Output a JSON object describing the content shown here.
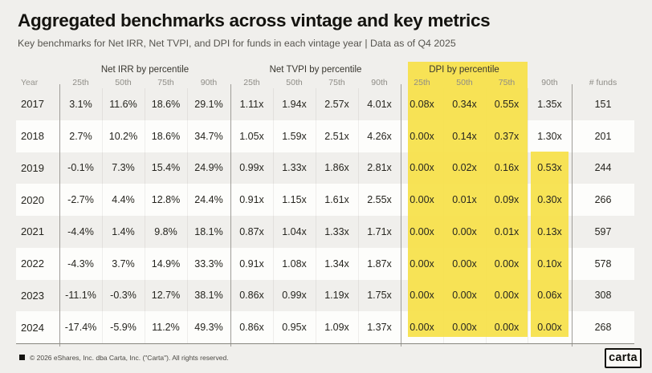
{
  "page": {
    "title": "Aggregated benchmarks across vintage and key metrics",
    "subtitle": "Key benchmarks for Net IRR, Net TVPI, and DPI for funds in each vintage year | Data as of Q4 2025"
  },
  "chart_data": {
    "type": "table",
    "title": "Aggregated benchmarks across vintage and key metrics",
    "subtitle": "Key benchmarks for Net IRR, Net TVPI, and DPI for funds in each vintage year | Data as of Q4 2025",
    "column_groups": [
      "Net IRR by percentile",
      "Net TVPI by percentile",
      "DPI by percentile"
    ],
    "columns": [
      "Year",
      "25th",
      "50th",
      "75th",
      "90th",
      "25th",
      "50th",
      "75th",
      "90th",
      "25th",
      "50th",
      "75th",
      "90th",
      "# funds"
    ],
    "rows": [
      {
        "year": "2017",
        "values": [
          "3.1%",
          "11.6%",
          "18.6%",
          "29.1%",
          "1.11x",
          "1.94x",
          "2.57x",
          "4.01x",
          "0.08x",
          "0.34x",
          "0.55x",
          "1.35x"
        ],
        "funds": "151"
      },
      {
        "year": "2018",
        "values": [
          "2.7%",
          "10.2%",
          "18.6%",
          "34.7%",
          "1.05x",
          "1.59x",
          "2.51x",
          "4.26x",
          "0.00x",
          "0.14x",
          "0.37x",
          "1.30x"
        ],
        "funds": "201"
      },
      {
        "year": "2019",
        "values": [
          "-0.1%",
          "7.3%",
          "15.4%",
          "24.9%",
          "0.99x",
          "1.33x",
          "1.86x",
          "2.81x",
          "0.00x",
          "0.02x",
          "0.16x",
          "0.53x"
        ],
        "funds": "244"
      },
      {
        "year": "2020",
        "values": [
          "-2.7%",
          "4.4%",
          "12.8%",
          "24.4%",
          "0.91x",
          "1.15x",
          "1.61x",
          "2.55x",
          "0.00x",
          "0.01x",
          "0.09x",
          "0.30x"
        ],
        "funds": "266"
      },
      {
        "year": "2021",
        "values": [
          "-4.4%",
          "1.4%",
          "9.8%",
          "18.1%",
          "0.87x",
          "1.04x",
          "1.33x",
          "1.71x",
          "0.00x",
          "0.00x",
          "0.01x",
          "0.13x"
        ],
        "funds": "597"
      },
      {
        "year": "2022",
        "values": [
          "-4.3%",
          "3.7%",
          "14.9%",
          "33.3%",
          "0.91x",
          "1.08x",
          "1.34x",
          "1.87x",
          "0.00x",
          "0.00x",
          "0.00x",
          "0.10x"
        ],
        "funds": "578"
      },
      {
        "year": "2023",
        "values": [
          "-11.1%",
          "-0.3%",
          "12.7%",
          "38.1%",
          "0.86x",
          "0.99x",
          "1.19x",
          "1.75x",
          "0.00x",
          "0.00x",
          "0.00x",
          "0.06x"
        ],
        "funds": "308"
      },
      {
        "year": "2024",
        "values": [
          "-17.4%",
          "-5.9%",
          "11.2%",
          "49.3%",
          "0.86x",
          "0.95x",
          "1.09x",
          "1.37x",
          "0.00x",
          "0.00x",
          "0.00x",
          "0.00x"
        ],
        "funds": "268"
      }
    ],
    "highlight": {
      "color": "#F6E14B",
      "highlighted_columns": [
        "DPI 25th",
        "DPI 50th",
        "DPI 75th"
      ],
      "dpi_90th_highlighted_years": [
        "2019",
        "2020",
        "2021",
        "2022",
        "2023",
        "2024"
      ]
    }
  },
  "footer": {
    "copyright": "© 2026 eShares, Inc. dba Carta, Inc. (\"Carta\"). All rights reserved.",
    "logo": "carta"
  }
}
